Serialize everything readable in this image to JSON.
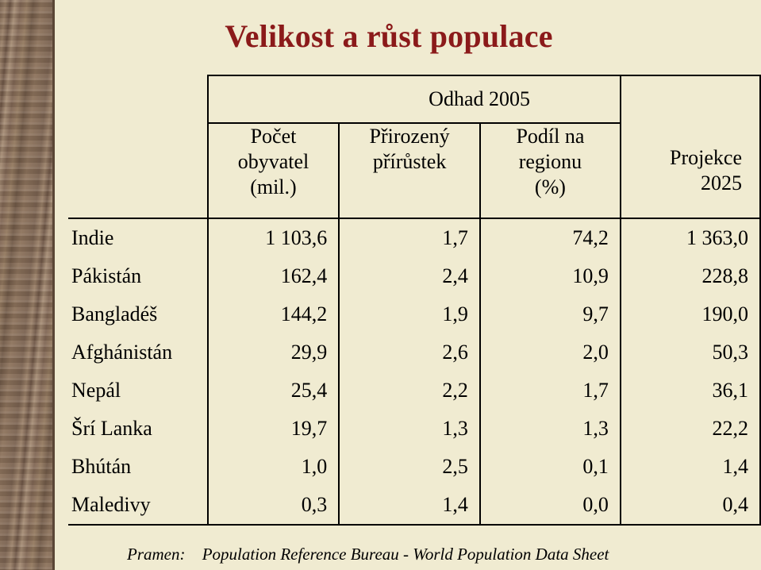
{
  "title": "Velikost a růst populace",
  "table": {
    "group_header": "Odhad 2005",
    "col_population": [
      "Počet",
      "obyvatel",
      "(mil.)"
    ],
    "col_growth": [
      "Přirozený",
      "přírůstek"
    ],
    "col_share": [
      "Podíl na",
      "regionu",
      "(%)"
    ],
    "col_projection": [
      "Projekce",
      "2025"
    ],
    "rows": [
      {
        "country": "Indie",
        "population": "1 103,6",
        "growth": "1,7",
        "share": "74,2",
        "projection": "1 363,0"
      },
      {
        "country": "Pákistán",
        "population": "162,4",
        "growth": "2,4",
        "share": "10,9",
        "projection": "228,8"
      },
      {
        "country": "Bangladéš",
        "population": "144,2",
        "growth": "1,9",
        "share": "9,7",
        "projection": "190,0"
      },
      {
        "country": "Afghánistán",
        "population": "29,9",
        "growth": "2,6",
        "share": "2,0",
        "projection": "50,3"
      },
      {
        "country": "Nepál",
        "population": "25,4",
        "growth": "2,2",
        "share": "1,7",
        "projection": "36,1"
      },
      {
        "country": "Šrí Lanka",
        "population": "19,7",
        "growth": "1,3",
        "share": "1,3",
        "projection": "22,2"
      },
      {
        "country": "Bhútán",
        "population": "1,0",
        "growth": "2,5",
        "share": "0,1",
        "projection": "1,4"
      },
      {
        "country": "Maledivy",
        "population": "0,3",
        "growth": "1,4",
        "share": "0,0",
        "projection": "0,4"
      }
    ]
  },
  "source": {
    "label": "Pramen:",
    "text": "Population Reference Bureau - World Population Data Sheet"
  }
}
